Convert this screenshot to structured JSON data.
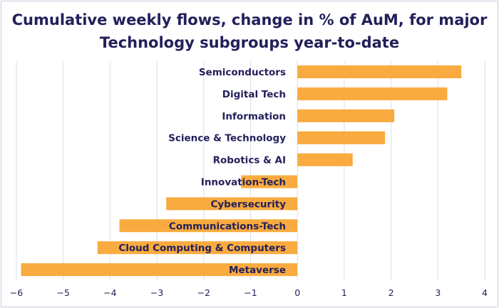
{
  "chart_data": {
    "type": "bar",
    "orientation": "horizontal",
    "title_lines": [
      "Cumulative weekly flows, change in % of AuM, for major",
      "Technology subgroups year-to-date"
    ],
    "categories": [
      "Semiconductors",
      "Digital Tech",
      "Information",
      "Science & Technology",
      "Robotics & AI",
      "Innovation-Tech",
      "Cybersecurity",
      "Communications-Tech",
      "Cloud Computing & Computers",
      "Metaverse"
    ],
    "values": [
      3.5,
      3.2,
      2.07,
      1.87,
      1.18,
      -1.2,
      -2.8,
      -3.8,
      -4.27,
      -5.9
    ],
    "xlim": [
      -6,
      4
    ],
    "xticks": [
      -6,
      -5,
      -4,
      -3,
      -2,
      -1,
      0,
      1,
      2,
      3,
      4
    ],
    "xlabel": "",
    "ylabel": "",
    "grid": "vertical",
    "legend": "none",
    "bar_color": "#f9ab3f",
    "text_color": "#23205a",
    "grid_color": "#dcdcec"
  }
}
